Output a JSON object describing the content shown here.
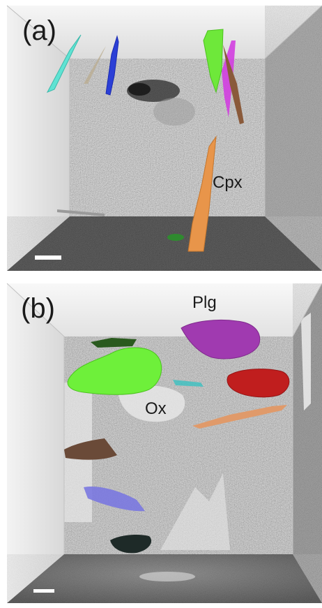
{
  "figure": {
    "panels": [
      {
        "id": "a",
        "label": "(a)",
        "annotations": [
          {
            "id": "cpx",
            "text": "Cpx",
            "color": "#e8954a"
          }
        ],
        "crystal_colors": [
          "#5fe3d3",
          "#2b3fd6",
          "#6ee83a",
          "#d23ee0",
          "#8a5a3a",
          "#e8954a",
          "#9a9a9a"
        ]
      },
      {
        "id": "b",
        "label": "(b)",
        "annotations": [
          {
            "id": "plg",
            "text": "Plg",
            "color": "#a03ab0"
          },
          {
            "id": "ox",
            "text": "Ox",
            "color": "#e6e6e6"
          }
        ],
        "crystal_colors": [
          "#6ef03a",
          "#a03ab0",
          "#c01e1e",
          "#6a4a38",
          "#7a78e0",
          "#1e2a28",
          "#e09a6a",
          "#3ac0c0",
          "#2a5a1e"
        ]
      }
    ],
    "scale_bar_color": "#ffffff"
  }
}
